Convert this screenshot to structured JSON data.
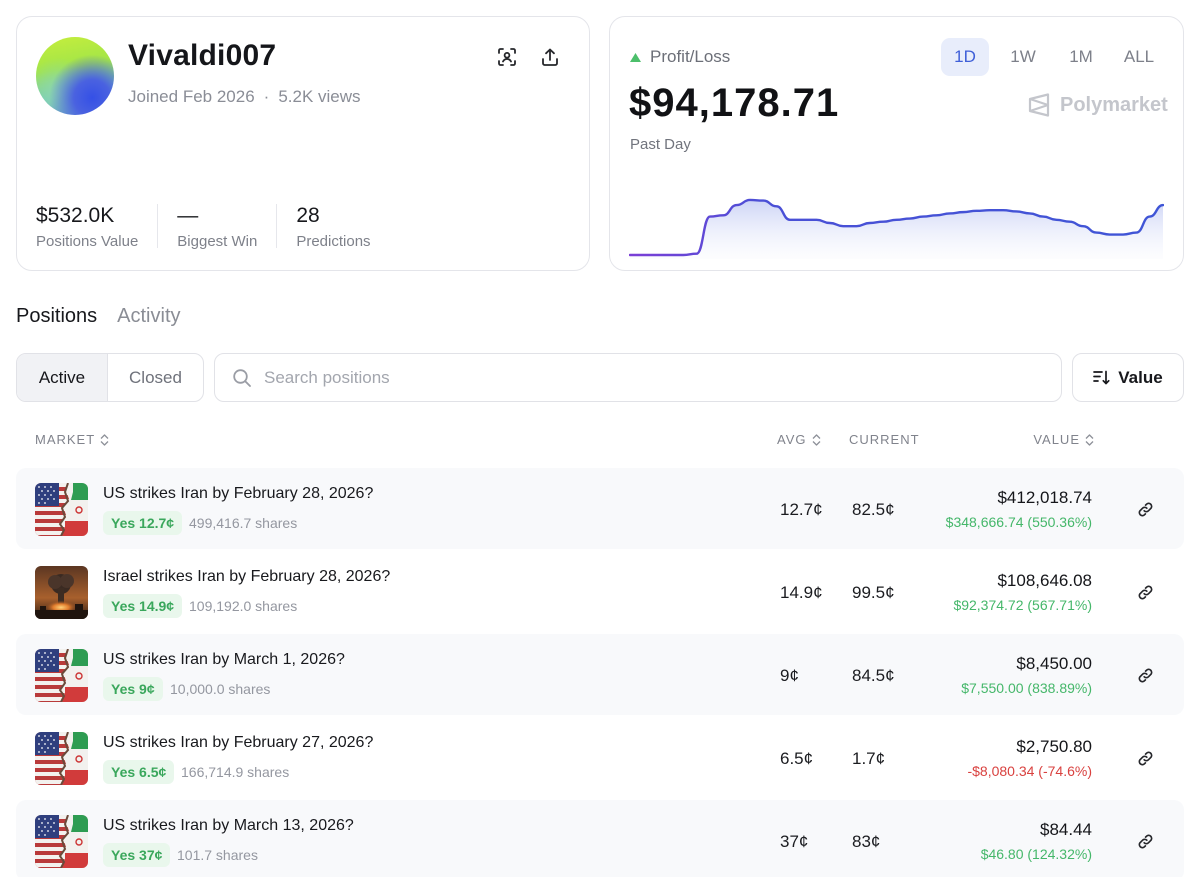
{
  "profile": {
    "username": "Vivaldi007",
    "joined": "Joined Feb 2026",
    "separator": "·",
    "views": "5.2K views",
    "stats": [
      {
        "value": "$532.0K",
        "label": "Positions Value"
      },
      {
        "value": "—",
        "label": "Biggest Win"
      },
      {
        "value": "28",
        "label": "Predictions"
      }
    ]
  },
  "pnl": {
    "label": "Profit/Loss",
    "value": "$94,178.71",
    "period": "Past Day",
    "brand": "Polymarket",
    "ranges": [
      "1D",
      "1W",
      "1M",
      "ALL"
    ],
    "active_range": "1D",
    "accent_color": "#4a5fd6",
    "up_color": "#4cbf6b"
  },
  "chart_data": {
    "type": "area",
    "x": [
      0,
      1,
      2,
      3,
      4,
      5,
      6,
      7,
      8,
      9,
      10,
      11,
      12,
      13,
      14,
      15,
      16,
      17,
      18,
      19,
      20,
      21,
      22,
      23,
      24,
      25,
      26,
      27,
      28,
      29,
      30,
      31,
      32,
      33,
      34,
      35,
      36,
      37,
      38,
      39,
      40
    ],
    "values": [
      0,
      0,
      0,
      0,
      0,
      0.02,
      0.6,
      0.62,
      0.78,
      0.86,
      0.85,
      0.76,
      0.55,
      0.55,
      0.55,
      0.5,
      0.45,
      0.45,
      0.5,
      0.52,
      0.55,
      0.57,
      0.6,
      0.62,
      0.65,
      0.67,
      0.69,
      0.7,
      0.7,
      0.68,
      0.65,
      0.6,
      0.55,
      0.52,
      0.45,
      0.35,
      0.32,
      0.32,
      0.35,
      0.6,
      0.78
    ],
    "series_colors": [
      "#7b3fd6",
      "#3f55d6"
    ]
  },
  "tabs": [
    "Positions",
    "Activity"
  ],
  "filters": {
    "active": "Active",
    "closed": "Closed"
  },
  "search": {
    "placeholder": "Search positions"
  },
  "sort": {
    "label": "Value"
  },
  "table": {
    "headers": {
      "market": "MARKET",
      "avg": "AVG",
      "current": "CURRENT",
      "value": "VALUE"
    },
    "rows": [
      {
        "title": "US strikes Iran by February 28, 2026?",
        "outcome": "Yes 12.7¢",
        "shares": "499,416.7 shares",
        "avg": "12.7¢",
        "current": "82.5¢",
        "value": "$412,018.74",
        "pnl": "$348,666.74 (550.36%)",
        "positive": true,
        "image": "flag"
      },
      {
        "title": "Israel strikes Iran by February 28, 2026?",
        "outcome": "Yes 14.9¢",
        "shares": "109,192.0 shares",
        "avg": "14.9¢",
        "current": "99.5¢",
        "value": "$108,646.08",
        "pnl": "$92,374.72 (567.71%)",
        "positive": true,
        "image": "explosion"
      },
      {
        "title": "US strikes Iran by March 1, 2026?",
        "outcome": "Yes 9¢",
        "shares": "10,000.0 shares",
        "avg": "9¢",
        "current": "84.5¢",
        "value": "$8,450.00",
        "pnl": "$7,550.00 (838.89%)",
        "positive": true,
        "image": "flag"
      },
      {
        "title": "US strikes Iran by February 27, 2026?",
        "outcome": "Yes 6.5¢",
        "shares": "166,714.9 shares",
        "avg": "6.5¢",
        "current": "1.7¢",
        "value": "$2,750.80",
        "pnl": "-$8,080.34 (-74.6%)",
        "positive": false,
        "image": "flag"
      },
      {
        "title": "US strikes Iran by March 13, 2026?",
        "outcome": "Yes 37¢",
        "shares": "101.7 shares",
        "avg": "37¢",
        "current": "83¢",
        "value": "$84.44",
        "pnl": "$46.80 (124.32%)",
        "positive": true,
        "image": "flag"
      }
    ],
    "colors": {
      "positive": "#45b76a",
      "negative": "#d9413f"
    }
  }
}
